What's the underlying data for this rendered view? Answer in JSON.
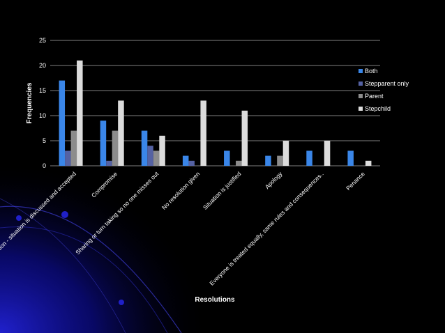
{
  "colors": {
    "background": "#000000",
    "text": "#ffffff",
    "grid": "#ffffff",
    "Both": "#3a86e8",
    "Stepparent only": "#5562a3",
    "Parent": "#8c8c8c",
    "Stepchild": "#dcdcdc",
    "decor_blue": "#1010b0"
  },
  "chart_data": {
    "type": "bar",
    "title": "",
    "xlabel": "Resolutions",
    "ylabel": "Frequencies",
    "ylim": [
      0,
      25
    ],
    "yticks": [
      0,
      5,
      10,
      15,
      20,
      25
    ],
    "grid": true,
    "legend_position": "right",
    "categories": [
      "Communication - situation is discussed and accepted",
      "Compromise",
      "Sharing or turn taking so no one misses out",
      "No resolution given",
      "Situation is justified",
      "Apology",
      "Everyone is treated equally, same rules and consequences..",
      "Penance"
    ],
    "series": [
      {
        "name": "Both",
        "values": [
          17,
          9,
          7,
          2,
          3,
          2,
          3,
          3
        ]
      },
      {
        "name": "Stepparent only",
        "values": [
          3,
          1,
          4,
          1,
          0,
          0,
          0,
          0
        ]
      },
      {
        "name": "Parent",
        "values": [
          7,
          7,
          3,
          0,
          1,
          2,
          0,
          0
        ]
      },
      {
        "name": "Stepchild",
        "values": [
          21,
          13,
          6,
          13,
          11,
          5,
          5,
          1
        ]
      }
    ]
  }
}
